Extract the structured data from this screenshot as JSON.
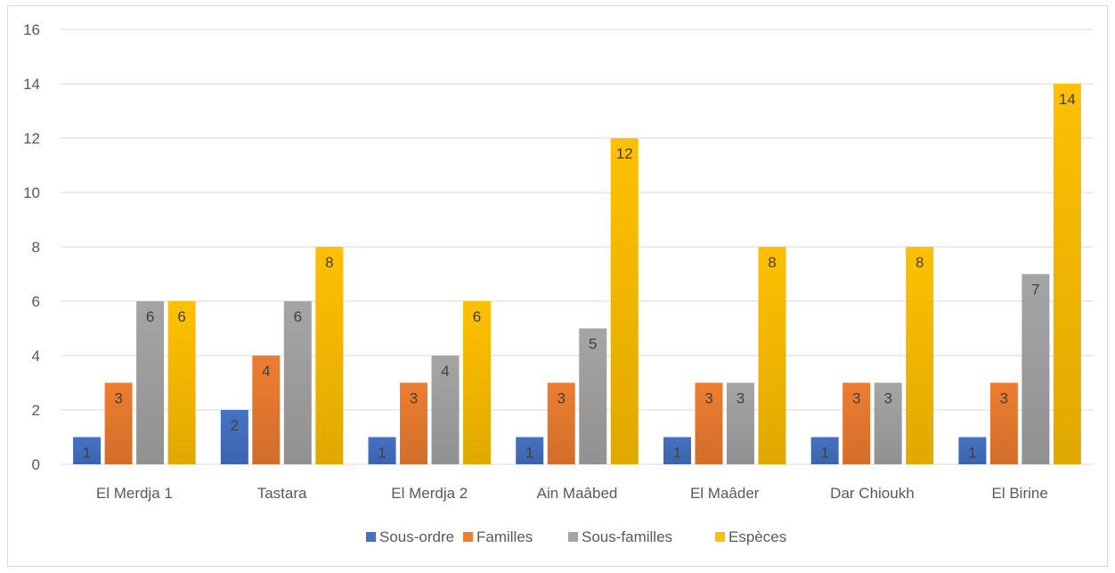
{
  "chart_data": {
    "type": "bar",
    "categories": [
      "El Merdja 1",
      "Tastara",
      "El Merdja 2",
      "Ain Maâbed",
      "El Maâder",
      "Dar Chioukh",
      "El Birine"
    ],
    "series": [
      {
        "name": "Sous-ordre",
        "color": "#4472C4",
        "values": [
          1,
          2,
          1,
          1,
          1,
          1,
          1
        ]
      },
      {
        "name": "Familles",
        "color": "#ED7D31",
        "values": [
          3,
          4,
          3,
          3,
          3,
          3,
          3
        ]
      },
      {
        "name": "Sous-familles",
        "color": "#A5A5A5",
        "values": [
          6,
          6,
          4,
          5,
          3,
          3,
          7
        ]
      },
      {
        "name": "Espèces",
        "color": "#FFC000",
        "values": [
          6,
          8,
          6,
          12,
          8,
          8,
          14
        ]
      }
    ],
    "ylim": [
      0,
      16
    ],
    "yticks": [
      0,
      2,
      4,
      6,
      8,
      10,
      12,
      14,
      16
    ],
    "grid": true,
    "legend_position": "bottom",
    "title": "",
    "xlabel": "",
    "ylabel": ""
  }
}
